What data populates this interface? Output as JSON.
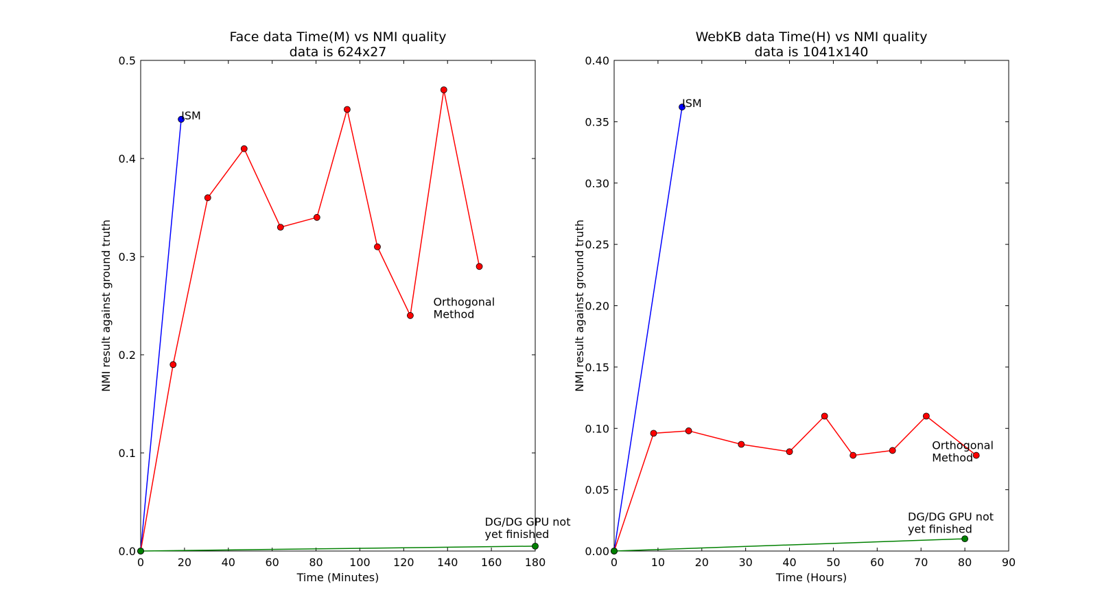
{
  "chart_data": [
    {
      "type": "line",
      "title": "Face data Time(M) vs NMI quality",
      "subtitle": "data is 624x27",
      "xlabel": "Time (Minutes)",
      "ylabel": "NMI result against ground truth",
      "xlim": [
        0,
        180
      ],
      "ylim": [
        0,
        0.5
      ],
      "xticks": [
        0,
        20,
        40,
        60,
        80,
        100,
        120,
        140,
        160,
        180
      ],
      "yticks": [
        0.0,
        0.1,
        0.2,
        0.3,
        0.4,
        0.5
      ],
      "xtick_labels": [
        "0",
        "20",
        "40",
        "60",
        "80",
        "100",
        "120",
        "140",
        "160",
        "180"
      ],
      "ytick_labels": [
        "0.0",
        "0.1",
        "0.2",
        "0.3",
        "0.4",
        "0.5"
      ],
      "grid": false,
      "series": [
        {
          "name": "ISM",
          "color": "#0000ff",
          "marker": "circle",
          "points": [
            [
              0,
              0.0
            ],
            [
              18.5,
              0.44
            ]
          ]
        },
        {
          "name": "Orthogonal Method",
          "color": "#ff0000",
          "marker": "circle",
          "points": [
            [
              0,
              0.0
            ],
            [
              14.8,
              0.19
            ],
            [
              30.6,
              0.36
            ],
            [
              47.2,
              0.41
            ],
            [
              63.8,
              0.33
            ],
            [
              80.4,
              0.34
            ],
            [
              94.2,
              0.45
            ],
            [
              108,
              0.31
            ],
            [
              123,
              0.24
            ],
            [
              138.3,
              0.47
            ],
            [
              154.5,
              0.29
            ]
          ]
        },
        {
          "name": "DG/DG GPU not yet finished",
          "color": "#008000",
          "marker": "circle",
          "points": [
            [
              0,
              0.0
            ],
            [
              180,
              0.005
            ]
          ]
        }
      ],
      "annotations": [
        {
          "series": 0,
          "lines": [
            "ISM"
          ],
          "at": [
            18.5,
            0.44
          ]
        },
        {
          "series": 1,
          "lines": [
            "Orthogonal",
            "Method"
          ],
          "at": [
            133.5,
            0.25
          ]
        },
        {
          "series": 2,
          "lines": [
            "DG/DG GPU not",
            "yet finished"
          ],
          "at": [
            157,
            0.026
          ]
        }
      ]
    },
    {
      "type": "line",
      "title": "WebKB data Time(H) vs NMI quality",
      "subtitle": "data is 1041x140",
      "xlabel": "Time (Hours)",
      "ylabel": "NMI result against ground truth",
      "xlim": [
        0,
        90
      ],
      "ylim": [
        0,
        0.4
      ],
      "xticks": [
        0,
        10,
        20,
        30,
        40,
        50,
        60,
        70,
        80,
        90
      ],
      "yticks": [
        0.0,
        0.05,
        0.1,
        0.15,
        0.2,
        0.25,
        0.3,
        0.35,
        0.4
      ],
      "xtick_labels": [
        "0",
        "10",
        "20",
        "30",
        "40",
        "50",
        "60",
        "70",
        "80",
        "90"
      ],
      "ytick_labels": [
        "0.00",
        "0.05",
        "0.10",
        "0.15",
        "0.20",
        "0.25",
        "0.30",
        "0.35",
        "0.40"
      ],
      "grid": false,
      "series": [
        {
          "name": "ISM",
          "color": "#0000ff",
          "marker": "circle",
          "points": [
            [
              0,
              0.0
            ],
            [
              15.5,
              0.362
            ]
          ]
        },
        {
          "name": "Orthogonal Method",
          "color": "#ff0000",
          "marker": "circle",
          "points": [
            [
              0,
              0.0
            ],
            [
              9,
              0.096
            ],
            [
              17,
              0.098
            ],
            [
              29,
              0.087
            ],
            [
              40,
              0.081
            ],
            [
              48,
              0.11
            ],
            [
              54.5,
              0.078
            ],
            [
              63.5,
              0.082
            ],
            [
              71.2,
              0.11
            ],
            [
              82.6,
              0.078
            ]
          ]
        },
        {
          "name": "DG/DG GPU not yet finished",
          "color": "#008000",
          "marker": "circle",
          "points": [
            [
              0,
              0.0
            ],
            [
              80,
              0.01
            ]
          ]
        }
      ],
      "annotations": [
        {
          "series": 0,
          "lines": [
            "ISM"
          ],
          "at": [
            15.5,
            0.362
          ]
        },
        {
          "series": 1,
          "lines": [
            "Orthogonal",
            "Method"
          ],
          "at": [
            72.5,
            0.083
          ]
        },
        {
          "series": 2,
          "lines": [
            "DG/DG GPU not",
            "yet finished"
          ],
          "at": [
            67,
            0.025
          ]
        }
      ]
    }
  ]
}
